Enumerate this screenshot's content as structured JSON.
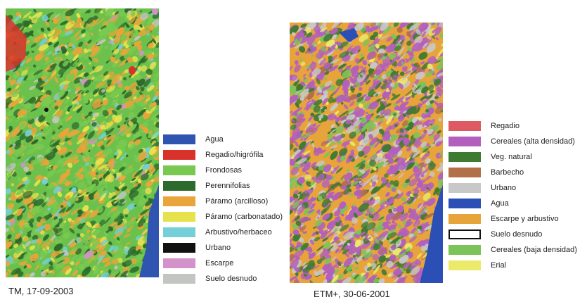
{
  "panels": [
    {
      "caption": "TM, 17-09-2003",
      "base_color": "#6cc14c",
      "legend": [
        {
          "label": "Agua",
          "color": "#2f55b0",
          "border": false
        },
        {
          "label": "Regadio/higrófila",
          "color": "#d8322a",
          "border": false
        },
        {
          "label": "Frondosas",
          "color": "#79c950",
          "border": false
        },
        {
          "label": "Perennifolias",
          "color": "#2d6b2c",
          "border": false
        },
        {
          "label": "Páramo (arcilloso)",
          "color": "#e9a43a",
          "border": false
        },
        {
          "label": "Páramo (carbonatado)",
          "color": "#e6e24d",
          "border": false
        },
        {
          "label": "Arbustivo/herbaceo",
          "color": "#74cfd6",
          "border": false
        },
        {
          "label": "Urbano",
          "color": "#111111",
          "border": false
        },
        {
          "label": "Escarpe",
          "color": "#d392c9",
          "border": false
        },
        {
          "label": "Suelo desnudo",
          "color": "#c3c5c3",
          "border": false
        }
      ]
    },
    {
      "caption": "ETM+, 30-06-2001",
      "base_color": "#e7a43b",
      "legend": [
        {
          "label": "Regadio",
          "color": "#dd5a62",
          "border": false
        },
        {
          "label": "Cereales (alta densidad)",
          "color": "#b25fbe",
          "border": false
        },
        {
          "label": "Veg. natural",
          "color": "#3e7a30",
          "border": false
        },
        {
          "label": "Barbecho",
          "color": "#b27049",
          "border": false
        },
        {
          "label": "Urbano",
          "color": "#c8c8c8",
          "border": false
        },
        {
          "label": "Agua",
          "color": "#2b4fb5",
          "border": false
        },
        {
          "label": "Escarpe y arbustivo",
          "color": "#e7a43b",
          "border": false
        },
        {
          "label": "Suelo desnudo",
          "color": "#ffffff",
          "border": true
        },
        {
          "label": "Cereales (baja densidad)",
          "color": "#7cc35a",
          "border": false
        },
        {
          "label": "Erial",
          "color": "#ecea6a",
          "border": false
        }
      ]
    }
  ]
}
